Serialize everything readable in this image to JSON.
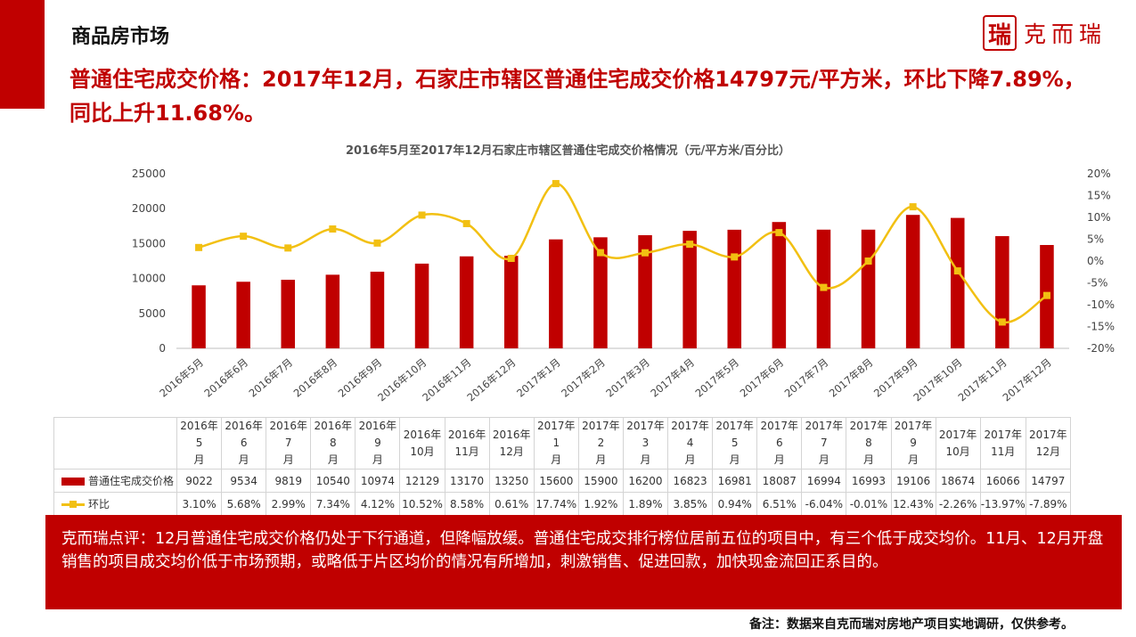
{
  "header": {
    "section_title": "商品房市场",
    "logo_mark": "瑞",
    "logo_text": "克而瑞"
  },
  "headline": "普通住宅成交价格：2017年12月，石家庄市辖区普通住宅成交价格14797元/平方米，环比下降7.89%，同比上升11.68%。",
  "chart_data": {
    "type": "bar",
    "title": "2016年5月至2017年12月石家庄市辖区普通住宅成交价格情况（元/平方米/百分比）",
    "categories": [
      "2016年5月",
      "2016年6月",
      "2016年7月",
      "2016年8月",
      "2016年9月",
      "2016年10月",
      "2016年11月",
      "2016年12月",
      "2017年1月",
      "2017年2月",
      "2017年3月",
      "2017年4月",
      "2017年5月",
      "2017年6月",
      "2017年7月",
      "2017年8月",
      "2017年9月",
      "2017年10月",
      "2017年11月",
      "2017年12月"
    ],
    "table_headers": [
      [
        "2016年5",
        "月"
      ],
      [
        "2016年6",
        "月"
      ],
      [
        "2016年7",
        "月"
      ],
      [
        "2016年8",
        "月"
      ],
      [
        "2016年9",
        "月"
      ],
      [
        "2016年",
        "10月"
      ],
      [
        "2016年",
        "11月"
      ],
      [
        "2016年",
        "12月"
      ],
      [
        "2017年1",
        "月"
      ],
      [
        "2017年2",
        "月"
      ],
      [
        "2017年3",
        "月"
      ],
      [
        "2017年4",
        "月"
      ],
      [
        "2017年5",
        "月"
      ],
      [
        "2017年6",
        "月"
      ],
      [
        "2017年7",
        "月"
      ],
      [
        "2017年8",
        "月"
      ],
      [
        "2017年9",
        "月"
      ],
      [
        "2017年",
        "10月"
      ],
      [
        "2017年",
        "11月"
      ],
      [
        "2017年",
        "12月"
      ]
    ],
    "series": [
      {
        "name": "普通住宅成交价格",
        "type": "bar",
        "axis": "left",
        "color": "#c00000",
        "values": [
          9022,
          9534,
          9819,
          10540,
          10974,
          12129,
          13170,
          13250,
          15600,
          15900,
          16200,
          16823,
          16981,
          18087,
          16994,
          16993,
          19106,
          18674,
          16066,
          14797
        ]
      },
      {
        "name": "环比",
        "type": "line",
        "axis": "right",
        "color": "#f2c012",
        "values": [
          3.1,
          5.68,
          2.99,
          7.34,
          4.12,
          10.52,
          8.58,
          0.61,
          17.74,
          1.92,
          1.89,
          3.85,
          0.94,
          6.51,
          -6.04,
          -0.01,
          12.43,
          -2.26,
          -13.97,
          -7.89
        ],
        "labels": [
          "3.10%",
          "5.68%",
          "2.99%",
          "7.34%",
          "4.12%",
          "10.52%",
          "8.58%",
          "0.61%",
          "17.74%",
          "1.92%",
          "1.89%",
          "3.85%",
          "0.94%",
          "6.51%",
          "-6.04%",
          "-0.01%",
          "12.43%",
          "-2.26%",
          "-13.97%",
          "-7.89%"
        ]
      }
    ],
    "ylim_left": [
      0,
      25000
    ],
    "yticks_left": [
      0,
      5000,
      10000,
      15000,
      20000,
      25000
    ],
    "ylim_right": [
      -20,
      20
    ],
    "yticks_right": [
      "-20%",
      "-15%",
      "-10%",
      "-5%",
      "0%",
      "5%",
      "10%",
      "15%",
      "20%"
    ],
    "grid": false,
    "legend": "table"
  },
  "comment": "克而瑞点评：12月普通住宅成交价格仍处于下行通道，但降幅放缓。普通住宅成交排行榜位居前五位的项目中，有三个低于成交均价。11月、12月开盘销售的项目成交均价低于市场预期，或略低于片区均价的情况有所增加，刺激销售、促进回款，加快现金流回正系目的。",
  "note": "备注：数据来自克而瑞对房地产项目实地调研，仅供参考。"
}
